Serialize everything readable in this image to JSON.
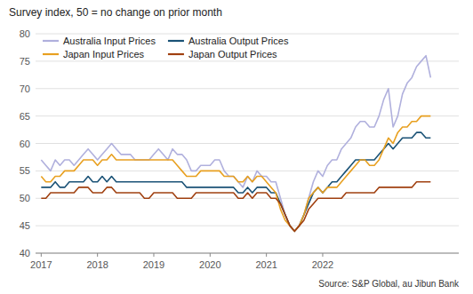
{
  "chart_data": {
    "type": "line",
    "title": "Survey index, 50 = no change on prior month",
    "annotations": [
      "Source: S&P Global, au Jibun Bank"
    ],
    "x": [
      2017,
      2017.0833,
      2017.1667,
      2017.25,
      2017.3333,
      2017.4167,
      2017.5,
      2017.5833,
      2017.6667,
      2017.75,
      2017.8333,
      2017.9167,
      2018,
      2018.0833,
      2018.1667,
      2018.25,
      2018.3333,
      2018.4167,
      2018.5,
      2018.5833,
      2018.6667,
      2018.75,
      2018.8333,
      2018.9167,
      2019,
      2019.0833,
      2019.1667,
      2019.25,
      2019.3333,
      2019.4167,
      2019.5,
      2019.5833,
      2019.6667,
      2019.75,
      2019.8333,
      2019.9167,
      2020,
      2020.0833,
      2020.1667,
      2020.25,
      2020.3333,
      2020.4167,
      2020.5,
      2020.5833,
      2020.6667,
      2020.75,
      2020.8333,
      2020.9167,
      2021,
      2021.0833,
      2021.1667,
      2021.25,
      2021.3333,
      2021.4167,
      2021.5,
      2021.5833,
      2021.6667,
      2021.75,
      2021.8333,
      2021.9167,
      2022,
      2022.0833,
      2022.1667,
      2022.25,
      2022.3333,
      2022.4167,
      2022.5,
      2022.5833,
      2022.6667,
      2022.75,
      2022.8333,
      2022.9167,
      2023,
      2023.0833,
      2023.1667,
      2023.25,
      2023.3333,
      2023.4167,
      2023.5,
      2023.5833,
      2023.6667,
      2023.75,
      2023.8333,
      2023.9167
    ],
    "xlim": [
      2016.9,
      2024.4167
    ],
    "xticks": [
      2017,
      2018,
      2019,
      2020,
      2021,
      2022
    ],
    "ylim": [
      40,
      80
    ],
    "yticks": [
      40,
      45,
      50,
      55,
      60,
      65,
      70,
      75,
      80
    ],
    "grid": true,
    "legend": "upper left",
    "series": [
      {
        "name": "Australia Input Prices",
        "color": "#b0b0dd",
        "values": [
          57,
          56,
          55,
          57,
          56,
          57,
          57,
          56,
          57,
          58,
          59,
          58,
          57,
          58,
          59,
          60,
          59,
          58,
          58,
          58,
          57,
          57,
          57,
          57,
          58,
          59,
          58,
          57,
          59,
          58,
          58,
          57,
          55,
          55,
          56,
          56,
          56,
          57,
          57,
          55,
          54,
          54,
          53,
          52,
          54,
          53,
          55,
          54,
          54,
          53,
          53,
          50,
          47,
          45,
          44,
          45,
          47,
          50,
          53,
          55,
          54,
          56,
          57,
          57,
          59,
          60,
          61,
          63,
          64,
          64,
          63,
          63,
          65,
          68,
          70,
          63,
          65,
          69,
          71,
          72,
          74,
          75,
          76,
          72
        ]
      },
      {
        "name": "Australia Output Prices",
        "color": "#1a5276",
        "values": [
          52,
          52,
          52,
          53,
          52,
          52,
          53,
          53,
          53,
          53,
          54,
          53,
          53,
          54,
          53,
          54,
          53,
          53,
          53,
          53,
          53,
          53,
          53,
          53,
          53,
          53,
          53,
          53,
          53,
          53,
          53,
          52,
          52,
          52,
          52,
          52,
          52,
          52,
          52,
          52,
          52,
          52,
          51,
          51,
          52,
          51,
          52,
          52,
          52,
          51,
          51,
          49,
          47,
          45,
          44,
          45,
          47,
          49,
          51,
          52,
          51,
          52,
          53,
          53,
          54,
          55,
          56,
          57,
          57,
          57,
          57,
          57,
          58,
          59,
          60,
          59,
          60,
          61,
          61,
          61,
          62,
          62,
          61,
          61
        ]
      },
      {
        "name": "Japan Input Prices",
        "color": "#e8a020",
        "values": [
          54,
          53,
          53,
          54,
          54,
          55,
          55,
          55,
          56,
          57,
          57,
          57,
          56,
          57,
          57,
          58,
          57,
          57,
          57,
          57,
          57,
          57,
          57,
          57,
          57,
          57,
          57,
          57,
          57,
          56,
          55,
          54,
          54,
          54,
          55,
          55,
          55,
          55,
          55,
          54,
          54,
          54,
          53,
          53,
          54,
          53,
          54,
          54,
          53,
          52,
          51,
          48,
          46,
          45,
          44,
          45,
          47,
          50,
          51,
          52,
          51,
          52,
          52,
          52,
          53,
          54,
          55,
          56,
          57,
          57,
          56,
          56,
          57,
          59,
          61,
          60,
          62,
          63,
          63,
          64,
          64,
          65,
          65,
          65
        ]
      },
      {
        "name": "Japan Output Prices",
        "color": "#a04010",
        "values": [
          50,
          50,
          51,
          51,
          51,
          51,
          51,
          51,
          52,
          52,
          52,
          51,
          51,
          51,
          52,
          52,
          51,
          51,
          51,
          51,
          51,
          51,
          50,
          50,
          51,
          51,
          51,
          51,
          51,
          50,
          50,
          50,
          50,
          51,
          51,
          51,
          51,
          51,
          51,
          51,
          51,
          51,
          50,
          50,
          51,
          50,
          51,
          51,
          51,
          50,
          50,
          49,
          47,
          45,
          44,
          45,
          46,
          48,
          49,
          50,
          50,
          50,
          50,
          50,
          50,
          51,
          51,
          51,
          51,
          51,
          51,
          51,
          52,
          52,
          52,
          52,
          52,
          52,
          52,
          52,
          53,
          53,
          53,
          53
        ]
      }
    ]
  }
}
